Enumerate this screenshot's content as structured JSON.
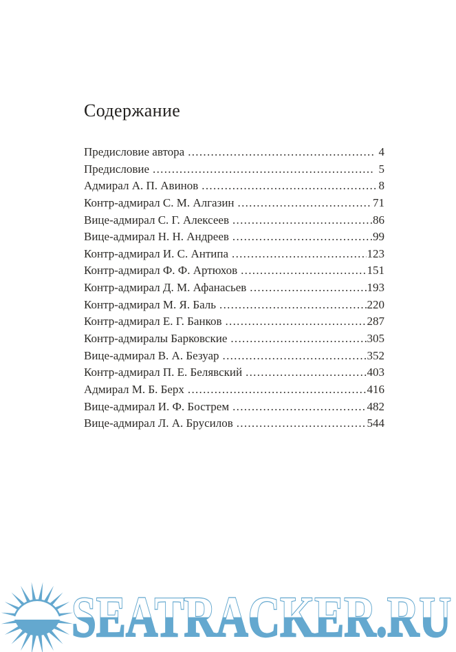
{
  "page": {
    "title": "Содержание",
    "background_color": "#ffffff",
    "text_color": "#2b2926"
  },
  "toc": {
    "leader_char": ".",
    "entries": [
      {
        "title": "Предисловие автора",
        "page": "4",
        "gap_before_page": true
      },
      {
        "title": "Предисловие",
        "page": "5",
        "gap_before_page": true
      },
      {
        "title": "Адмирал А. П. Авинов",
        "page": "8",
        "gap_before_page": false
      },
      {
        "title": "Контр-адмирал С. М. Алгазин",
        "page": "71",
        "gap_before_page": false
      },
      {
        "title": "Вице-адмирал С. Г. Алексеев",
        "page": "86",
        "gap_before_page": false
      },
      {
        "title": "Вице-адмирал Н. Н. Андреев",
        "page": "99",
        "gap_before_page": false
      },
      {
        "title": "Контр-адмирал И. С. Антипа",
        "page": "123",
        "gap_before_page": false
      },
      {
        "title": "Контр-адмирал Ф. Ф. Артюхов",
        "page": "151",
        "gap_before_page": false
      },
      {
        "title": "Контр-адмирал Д. М. Афанасьев",
        "page": "193",
        "gap_before_page": false
      },
      {
        "title": "Контр-адмирал М. Я. Баль",
        "page": "220",
        "gap_before_page": false
      },
      {
        "title": "Контр-адмирал Е. Г. Банков",
        "page": "287",
        "gap_before_page": false
      },
      {
        "title": "Контр-адмиралы Барковские",
        "page": "305",
        "gap_before_page": false
      },
      {
        "title": "Вице-адмирал В. А. Безуар",
        "page": "352",
        "gap_before_page": false
      },
      {
        "title": "Контр-адмирал П. Е. Белявский",
        "page": "403",
        "gap_before_page": false
      },
      {
        "title": "Адмирал М. Б. Берх",
        "page": "416",
        "gap_before_page": false
      },
      {
        "title": "Вице-адмирал И. Ф. Бострем",
        "page": "482",
        "gap_before_page": false
      },
      {
        "title": "Вице-адмирал Л. А. Брусилов",
        "page": "544",
        "gap_before_page": false
      }
    ]
  },
  "watermark": {
    "text": "SEATRACKER.RU",
    "color": "#64a8cf",
    "icon": "sun-over-sea-icon"
  }
}
